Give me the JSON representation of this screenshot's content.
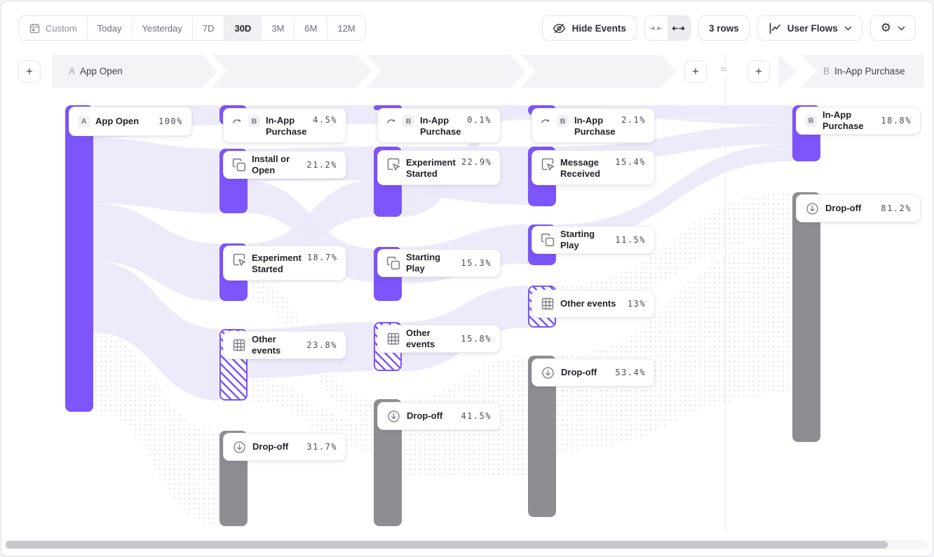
{
  "toolbar": {
    "date_ranges": [
      {
        "label": "Custom",
        "icon": "calendar",
        "active": false
      },
      {
        "label": "Today",
        "active": false
      },
      {
        "label": "Yesterday",
        "active": false
      },
      {
        "label": "7D",
        "active": false
      },
      {
        "label": "30D",
        "active": true
      },
      {
        "label": "3M",
        "active": false
      },
      {
        "label": "6M",
        "active": false
      },
      {
        "label": "12M",
        "active": false
      }
    ],
    "hide_events_label": "Hide Events",
    "density_control": {
      "options": [
        "collapse",
        "expand"
      ],
      "active": "expand"
    },
    "rows_label": "3 rows",
    "view_selector_label": "User Flows"
  },
  "flow_header": {
    "add_button_label": "+",
    "start_prefix": "A",
    "start_label": "App Open",
    "approx_symbol": "≈",
    "end_prefix": "B",
    "end_label": "In-App Purchase"
  },
  "colors": {
    "purple": "#7C55FB",
    "dropoff_gray": "#8E8E92",
    "ribbon_lavender": "#ECE9FA",
    "band_gray": "#F4F4F6"
  },
  "chart_data": {
    "type": "sankey",
    "unit": "percent of users per step",
    "start_event": "App Open",
    "end_event": "In-App Purchase",
    "steps": [
      {
        "name": "step-1",
        "nodes": [
          {
            "label": "App Open",
            "badge": "A",
            "pct": "100%",
            "value": 100,
            "kind": "solid"
          }
        ]
      },
      {
        "name": "step-2",
        "nodes": [
          {
            "label": "In-App Purchase",
            "badge": "B",
            "icon": "jump",
            "pct": "4.5%",
            "value": 4.5,
            "kind": "solid"
          },
          {
            "label": "Install or Open",
            "icon": "squares",
            "pct": "21.2%",
            "value": 21.2,
            "kind": "solid"
          },
          {
            "label": "Experiment Started",
            "icon": "experiment",
            "pct": "18.7%",
            "value": 18.7,
            "kind": "solid"
          },
          {
            "label": "Other events",
            "icon": "grid",
            "pct": "23.8%",
            "value": 23.8,
            "kind": "hatched"
          },
          {
            "label": "Drop-off",
            "icon": "dropoff",
            "pct": "31.7%",
            "value": 31.7,
            "kind": "gray"
          }
        ]
      },
      {
        "name": "step-3",
        "nodes": [
          {
            "label": "In-App Purchase",
            "badge": "B",
            "icon": "jump",
            "pct": "0.1%",
            "value": 0.1,
            "kind": "solid"
          },
          {
            "label": "Experiment Started",
            "icon": "experiment",
            "pct": "22.9%",
            "value": 22.9,
            "kind": "solid"
          },
          {
            "label": "Starting Play",
            "icon": "squares",
            "pct": "15.3%",
            "value": 15.3,
            "kind": "solid"
          },
          {
            "label": "Other events",
            "icon": "grid",
            "pct": "15.8%",
            "value": 15.8,
            "kind": "hatched"
          },
          {
            "label": "Drop-off",
            "icon": "dropoff",
            "pct": "41.5%",
            "value": 41.5,
            "kind": "gray"
          }
        ]
      },
      {
        "name": "step-4",
        "nodes": [
          {
            "label": "In-App Purchase",
            "badge": "B",
            "icon": "jump",
            "pct": "2.1%",
            "value": 2.1,
            "kind": "solid"
          },
          {
            "label": "Message Received",
            "icon": "experiment",
            "pct": "15.4%",
            "value": 15.4,
            "kind": "solid"
          },
          {
            "label": "Starting Play",
            "icon": "squares",
            "pct": "11.5%",
            "value": 11.5,
            "kind": "solid"
          },
          {
            "label": "Other events",
            "icon": "grid",
            "pct": "13%",
            "value": 13,
            "kind": "hatched"
          },
          {
            "label": "Drop-off",
            "icon": "dropoff",
            "pct": "53.4%",
            "value": 53.4,
            "kind": "gray"
          }
        ]
      },
      {
        "name": "terminal",
        "nodes": [
          {
            "label": "In-App Purchase",
            "badge": "B",
            "pct": "18.8%",
            "value": 18.8,
            "kind": "solid"
          },
          {
            "label": "Drop-off",
            "icon": "dropoff",
            "pct": "81.2%",
            "value": 81.2,
            "kind": "gray"
          }
        ]
      }
    ]
  }
}
